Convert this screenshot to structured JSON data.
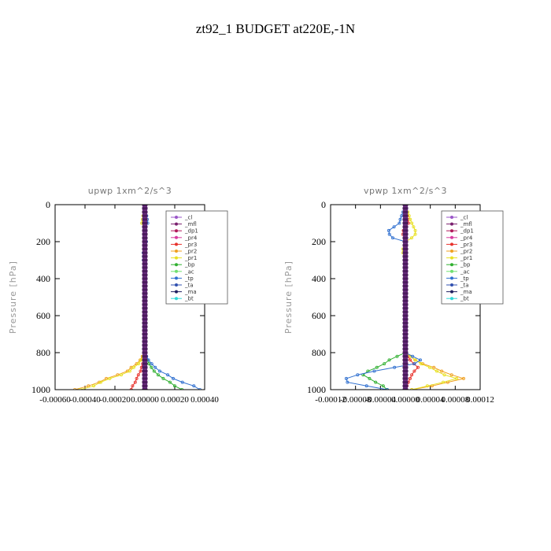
{
  "figure_title": "zt92_1  BUDGET at220E,-1N",
  "chart_data": [
    {
      "type": "line",
      "title": "upwp   1xm^2/s^3",
      "ylabel": "Pressure [hPa]",
      "xlabel": "",
      "xlim": [
        -0.0006,
        0.0004
      ],
      "ylim": [
        1000,
        0
      ],
      "x_ticks": [
        -0.0006,
        -0.0004,
        -0.0002,
        0.0,
        0.0002,
        0.0004
      ],
      "x_tick_labels": [
        "-0.00060",
        "-0.00040",
        "-0.00020",
        "0.00000",
        "0.00020",
        "0.00040"
      ],
      "y_ticks": [
        0,
        200,
        400,
        600,
        800,
        1000
      ],
      "y_tick_labels": [
        "0",
        "200",
        "400",
        "600",
        "800",
        "1000"
      ],
      "legend_position": "top-right",
      "series": [
        {
          "name": "_cl",
          "color": "#9a55c8",
          "p": [
            0,
            1000
          ],
          "x": [
            0.0,
            0.0
          ]
        },
        {
          "name": "_mfl",
          "color": "#7a1f6e",
          "p": [
            0,
            1000
          ],
          "x": [
            0.0,
            0.0
          ]
        },
        {
          "name": "_dp1",
          "color": "#b01a5a",
          "p": [
            0,
            1000
          ],
          "x": [
            0.0,
            0.0
          ]
        },
        {
          "name": "_pr4",
          "color": "#d83aa0",
          "p": [
            0,
            1000
          ],
          "x": [
            0.0,
            0.0
          ]
        },
        {
          "name": "_pr3",
          "color": "#e8322c",
          "p": [
            0,
            800,
            850,
            900,
            950,
            980,
            1000
          ],
          "x": [
            0.0,
            0.0,
            -1e-05,
            -3e-05,
            -6e-05,
            -8e-05,
            -9e-05
          ]
        },
        {
          "name": "_pr2",
          "color": "#f0a020",
          "p": [
            0,
            800,
            850,
            900,
            950,
            1000
          ],
          "x": [
            0.0,
            0.0,
            -4e-05,
            -0.00012,
            -0.00028,
            -0.00045
          ]
        },
        {
          "name": "_pr1",
          "color": "#e8e020",
          "p": [
            0,
            100,
            150,
            200,
            800,
            850,
            900,
            950,
            1000
          ],
          "x": [
            0.0,
            -2e-05,
            1e-05,
            0.0,
            0.0,
            -3e-05,
            -0.0001,
            -0.00026,
            -0.00042
          ]
        },
        {
          "name": "_bp",
          "color": "#30b030",
          "p": [
            0,
            800,
            850,
            900,
            950,
            1000
          ],
          "x": [
            0.0,
            0.0,
            2e-05,
            6e-05,
            0.00014,
            0.00025
          ]
        },
        {
          "name": "_ac",
          "color": "#70e070",
          "p": [
            0,
            1000
          ],
          "x": [
            0.0,
            0.0
          ]
        },
        {
          "name": "_tp",
          "color": "#3070d0",
          "p": [
            0,
            100,
            150,
            200,
            250,
            300,
            350,
            400,
            800,
            850,
            900,
            950,
            1000
          ],
          "x": [
            0.0,
            2e-05,
            -1e-05,
            1e-05,
            -1e-05,
            -1e-05,
            0.0,
            0.0,
            0.0,
            3e-05,
            0.0001,
            0.00022,
            0.00038
          ]
        },
        {
          "name": "_ta",
          "color": "#3050b0",
          "p": [
            0,
            1000
          ],
          "x": [
            0.0,
            0.0
          ]
        },
        {
          "name": "_ma",
          "color": "#202060",
          "p": [
            0,
            1000
          ],
          "x": [
            0.0,
            0.0
          ]
        },
        {
          "name": "_bt",
          "color": "#30d8d8",
          "p": [
            0,
            1000
          ],
          "x": [
            0.0,
            0.0
          ]
        }
      ]
    },
    {
      "type": "line",
      "title": "vpwp   1xm^2/s^3",
      "ylabel": "Pressure [hPa]",
      "xlabel": "",
      "xlim": [
        -0.00012,
        0.00012
      ],
      "ylim": [
        1000,
        0
      ],
      "x_ticks": [
        -0.00012,
        -8e-05,
        -4e-05,
        0.0,
        4e-05,
        8e-05,
        0.00012
      ],
      "x_tick_labels": [
        "-0.00012",
        "-0.00008",
        "-0.00004",
        "0.00000",
        "0.00004",
        "0.00008",
        "0.00012"
      ],
      "y_ticks": [
        0,
        200,
        400,
        600,
        800,
        1000
      ],
      "y_tick_labels": [
        "0",
        "200",
        "400",
        "600",
        "800",
        "1000"
      ],
      "legend_position": "top-right",
      "series": [
        {
          "name": "_cl",
          "color": "#9a55c8",
          "p": [
            0,
            1000
          ],
          "x": [
            0.0,
            0.0
          ]
        },
        {
          "name": "_mfl",
          "color": "#7a1f6e",
          "p": [
            0,
            1000
          ],
          "x": [
            0.0,
            0.0
          ]
        },
        {
          "name": "_dp1",
          "color": "#b01a5a",
          "p": [
            0,
            1000
          ],
          "x": [
            0.0,
            0.0
          ]
        },
        {
          "name": "_pr4",
          "color": "#d83aa0",
          "p": [
            0,
            1000
          ],
          "x": [
            0.0,
            0.0
          ]
        },
        {
          "name": "_pr3",
          "color": "#e8322c",
          "p": [
            0,
            100,
            150,
            200,
            800,
            850,
            880,
            920,
            960,
            1000
          ],
          "x": [
            0.0,
            5e-06,
            -5e-06,
            0.0,
            0.0,
            1e-05,
            2e-05,
            1e-05,
            5e-06,
            0.0
          ]
        },
        {
          "name": "_pr2",
          "color": "#f0a020",
          "p": [
            0,
            800,
            850,
            900,
            940,
            970,
            1000
          ],
          "x": [
            0.0,
            0.0,
            2e-05,
            6e-05,
            9e-05,
            6e-05,
            1e-05
          ]
        },
        {
          "name": "_pr1",
          "color": "#e8e020",
          "p": [
            0,
            100,
            150,
            180,
            200,
            250,
            300,
            800,
            850,
            900,
            940,
            970,
            1000
          ],
          "x": [
            0.0,
            1e-05,
            1.8e-05,
            1e-05,
            0.0,
            -5e-06,
            0.0,
            0.0,
            2e-05,
            5e-05,
            8e-05,
            5e-05,
            1e-05
          ]
        },
        {
          "name": "_bp",
          "color": "#30b030",
          "p": [
            0,
            800,
            830,
            870,
            920,
            970,
            1000
          ],
          "x": [
            0.0,
            0.0,
            -2e-05,
            -4e-05,
            -7e-05,
            -4e-05,
            -3e-05
          ]
        },
        {
          "name": "_ac",
          "color": "#70e070",
          "p": [
            0,
            1000
          ],
          "x": [
            0.0,
            0.0
          ]
        },
        {
          "name": "_tp",
          "color": "#3070d0",
          "p": [
            0,
            100,
            150,
            180,
            200,
            800,
            850,
            900,
            950,
            980,
            1000
          ],
          "x": [
            0.0,
            -1e-05,
            -3e-05,
            -2e-05,
            0.0,
            0.0,
            3e-05,
            -5e-05,
            -0.00011,
            -6e-05,
            -3e-05
          ]
        },
        {
          "name": "_ta",
          "color": "#3050b0",
          "p": [
            0,
            1000
          ],
          "x": [
            0.0,
            0.0
          ]
        },
        {
          "name": "_ma",
          "color": "#202060",
          "p": [
            0,
            1000
          ],
          "x": [
            0.0,
            0.0
          ]
        },
        {
          "name": "_bt",
          "color": "#30d8d8",
          "p": [
            0,
            1000
          ],
          "x": [
            0.0,
            0.0
          ]
        }
      ]
    }
  ]
}
